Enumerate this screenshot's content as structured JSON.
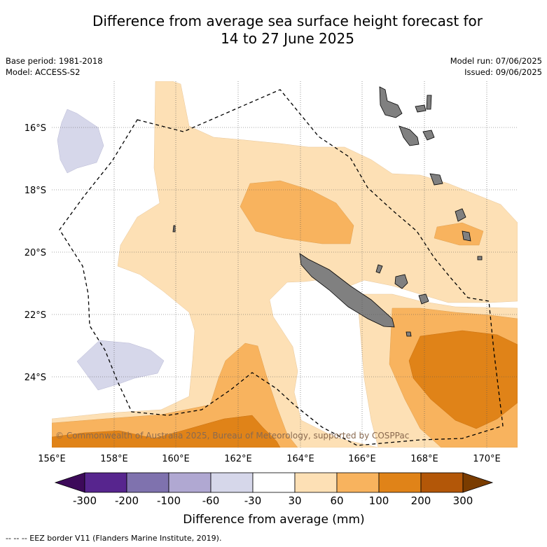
{
  "title_line1": "Difference from average sea surface height forecast for",
  "title_line2": "14 to 27 June 2025",
  "meta_left": {
    "base_period": "Base period: 1981-2018",
    "model": "Model: ACCESS-S2"
  },
  "meta_right": {
    "model_run": "Model run: 07/06/2025",
    "issued": "Issued: 09/06/2025"
  },
  "copyright": "© Commonwealth of Australia 2025, Bureau of Meteorology, supported by COSPPac",
  "map": {
    "lat_labels": [
      "16°S",
      "18°S",
      "20°S",
      "22°S",
      "24°S"
    ],
    "lon_labels": [
      "156°E",
      "158°E",
      "160°E",
      "162°E",
      "164°E",
      "166°E",
      "168°E",
      "170°E"
    ]
  },
  "colorbar": {
    "title": "Difference from average (mm)",
    "tick_labels": [
      "-300",
      "-200",
      "-100",
      "-60",
      "-30",
      "30",
      "60",
      "100",
      "200",
      "300"
    ],
    "colors": [
      "#3d0a5a",
      "#57258e",
      "#7f72ae",
      "#b0a8d2",
      "#d6d7ea",
      "#ffffff",
      "#fde0b5",
      "#f8b35e",
      "#e08318",
      "#b35708",
      "#7a3c00"
    ]
  },
  "footer": "-- -- -- EEZ border V11 (Flanders Marine Institute, 2019)."
}
